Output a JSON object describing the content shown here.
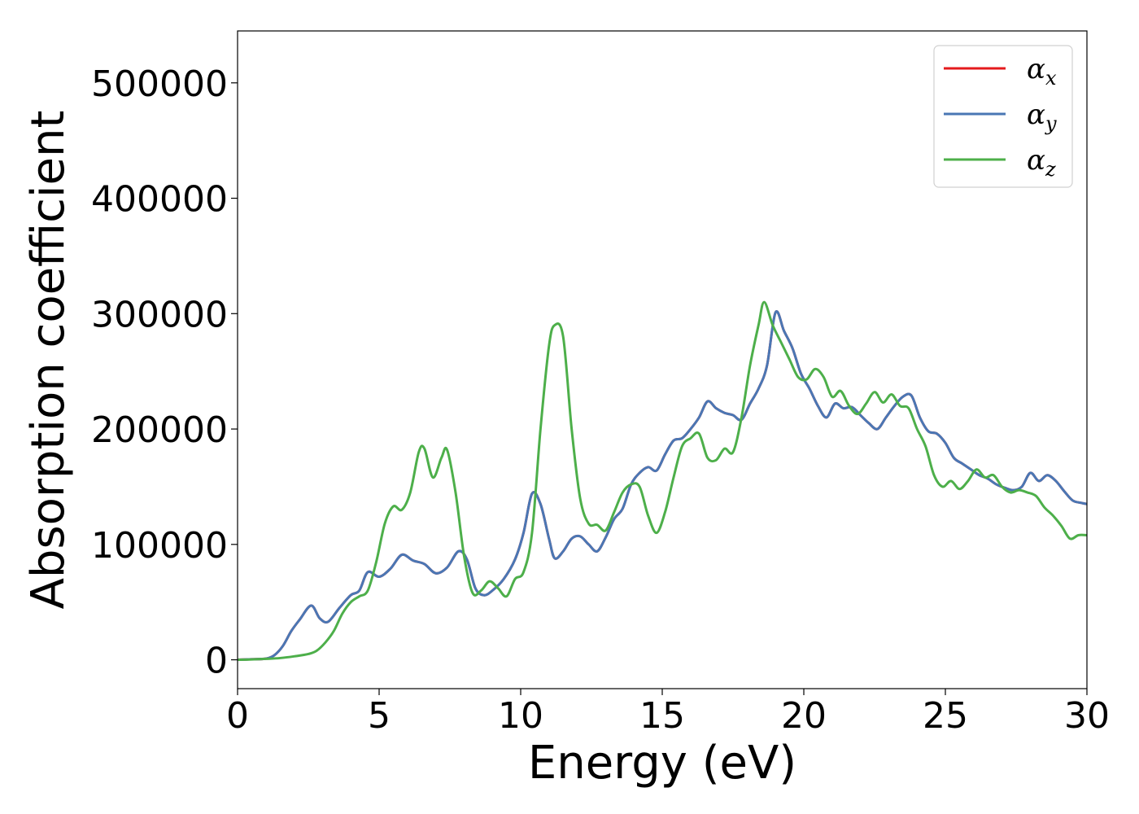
{
  "chart_data": {
    "type": "line",
    "title": "",
    "xlabel": "Energy (eV)",
    "ylabel": "Absorption coefficient",
    "xlim": [
      0,
      30
    ],
    "ylim": [
      -25000,
      545000
    ],
    "xticks": [
      "0",
      "5",
      "10",
      "15",
      "20",
      "25",
      "30"
    ],
    "yticks": [
      "0",
      "100000",
      "200000",
      "300000",
      "400000",
      "500000"
    ],
    "grid": false,
    "legend_placement": "top-right",
    "series": [
      {
        "name": "αx",
        "symbol": "α",
        "sub": "x",
        "color": "#e41a1c",
        "x": [
          0,
          0.5,
          1,
          1.3,
          1.6,
          1.9,
          2.2,
          2.6,
          2.9,
          3.2,
          3.6,
          4,
          4.3,
          4.6,
          5,
          5.4,
          5.8,
          6.2,
          6.6,
          7,
          7.4,
          7.8,
          8.1,
          8.4,
          8.7,
          9,
          9.4,
          9.8,
          10.1,
          10.4,
          10.7,
          11,
          11.2,
          11.5,
          11.8,
          12.1,
          12.4,
          12.7,
          13,
          13.3,
          13.6,
          13.9,
          14.2,
          14.5,
          14.8,
          15.1,
          15.4,
          15.7,
          16,
          16.3,
          16.6,
          16.9,
          17.2,
          17.5,
          17.8,
          18.1,
          18.4,
          18.7,
          19,
          19.3,
          19.6,
          19.9,
          20.2,
          20.5,
          20.8,
          21.1,
          21.4,
          21.7,
          22,
          22.3,
          22.6,
          22.9,
          23.2,
          23.5,
          23.8,
          24.1,
          24.4,
          24.7,
          25,
          25.3,
          25.6,
          25.9,
          26.2,
          26.5,
          26.8,
          27.1,
          27.4,
          27.7,
          28,
          28.3,
          28.6,
          28.9,
          29.2,
          29.5,
          29.8,
          30
        ],
        "y": [
          0,
          500,
          1000,
          4000,
          12000,
          25000,
          35000,
          47000,
          36000,
          33000,
          45000,
          56000,
          60000,
          76000,
          72000,
          79000,
          91000,
          86000,
          83000,
          75000,
          80000,
          94000,
          87000,
          62000,
          56000,
          60000,
          70000,
          87000,
          110000,
          144000,
          135000,
          105000,
          88000,
          94000,
          105000,
          107000,
          100000,
          94000,
          106000,
          122000,
          131000,
          152000,
          162000,
          167000,
          164000,
          178000,
          190000,
          192000,
          200000,
          210000,
          224000,
          218000,
          214000,
          212000,
          208000,
          222000,
          235000,
          255000,
          301000,
          285000,
          270000,
          248000,
          235000,
          220000,
          210000,
          222000,
          218000,
          219000,
          212000,
          205000,
          200000,
          210000,
          220000,
          228000,
          229000,
          210000,
          198000,
          196000,
          188000,
          175000,
          170000,
          165000,
          160000,
          157000,
          152000,
          149000,
          147000,
          150000,
          162000,
          155000,
          160000,
          155000,
          146000,
          138000,
          136000,
          135000
        ]
      },
      {
        "name": "αy",
        "symbol": "α",
        "sub": "y",
        "color": "#4a77b4",
        "x": [
          0,
          0.5,
          1,
          1.3,
          1.6,
          1.9,
          2.2,
          2.6,
          2.9,
          3.2,
          3.6,
          4,
          4.3,
          4.6,
          5,
          5.4,
          5.8,
          6.2,
          6.6,
          7,
          7.4,
          7.8,
          8.1,
          8.4,
          8.7,
          9,
          9.4,
          9.8,
          10.1,
          10.4,
          10.7,
          11,
          11.2,
          11.5,
          11.8,
          12.1,
          12.4,
          12.7,
          13,
          13.3,
          13.6,
          13.9,
          14.2,
          14.5,
          14.8,
          15.1,
          15.4,
          15.7,
          16,
          16.3,
          16.6,
          16.9,
          17.2,
          17.5,
          17.8,
          18.1,
          18.4,
          18.7,
          19,
          19.3,
          19.6,
          19.9,
          20.2,
          20.5,
          20.8,
          21.1,
          21.4,
          21.7,
          22,
          22.3,
          22.6,
          22.9,
          23.2,
          23.5,
          23.8,
          24.1,
          24.4,
          24.7,
          25,
          25.3,
          25.6,
          25.9,
          26.2,
          26.5,
          26.8,
          27.1,
          27.4,
          27.7,
          28,
          28.3,
          28.6,
          28.9,
          29.2,
          29.5,
          29.8,
          30
        ],
        "y": [
          0,
          500,
          1000,
          4000,
          12000,
          25000,
          35000,
          47000,
          36000,
          33000,
          45000,
          56000,
          60000,
          76000,
          72000,
          79000,
          91000,
          86000,
          83000,
          75000,
          80000,
          94000,
          87000,
          62000,
          56000,
          60000,
          70000,
          87000,
          110000,
          144000,
          135000,
          105000,
          88000,
          94000,
          105000,
          107000,
          100000,
          94000,
          106000,
          122000,
          131000,
          152000,
          162000,
          167000,
          164000,
          178000,
          190000,
          192000,
          200000,
          210000,
          224000,
          218000,
          214000,
          212000,
          208000,
          222000,
          235000,
          255000,
          301000,
          285000,
          270000,
          248000,
          235000,
          220000,
          210000,
          222000,
          218000,
          219000,
          212000,
          205000,
          200000,
          210000,
          220000,
          228000,
          229000,
          210000,
          198000,
          196000,
          188000,
          175000,
          170000,
          165000,
          160000,
          157000,
          152000,
          149000,
          147000,
          150000,
          162000,
          155000,
          160000,
          155000,
          146000,
          138000,
          136000,
          135000
        ]
      },
      {
        "name": "αz",
        "symbol": "α",
        "sub": "z",
        "color": "#4daf4a",
        "x": [
          0,
          0.5,
          1,
          1.5,
          2,
          2.5,
          2.8,
          3.1,
          3.4,
          3.7,
          4,
          4.3,
          4.6,
          4.9,
          5.2,
          5.5,
          5.8,
          6.1,
          6.4,
          6.6,
          6.9,
          7.2,
          7.4,
          7.7,
          8,
          8.3,
          8.6,
          8.9,
          9.2,
          9.5,
          9.8,
          10.1,
          10.4,
          10.7,
          11,
          11.2,
          11.5,
          11.8,
          12.1,
          12.4,
          12.7,
          13,
          13.3,
          13.6,
          13.9,
          14.2,
          14.5,
          14.8,
          15.1,
          15.4,
          15.7,
          16,
          16.3,
          16.6,
          16.9,
          17.2,
          17.5,
          17.8,
          18.1,
          18.4,
          18.6,
          18.9,
          19.2,
          19.5,
          19.8,
          20.1,
          20.4,
          20.7,
          21,
          21.3,
          21.6,
          21.9,
          22.2,
          22.5,
          22.8,
          23.1,
          23.4,
          23.7,
          24,
          24.3,
          24.6,
          24.9,
          25.2,
          25.5,
          25.8,
          26.1,
          26.4,
          26.7,
          27,
          27.3,
          27.6,
          27.9,
          28.2,
          28.5,
          28.8,
          29.1,
          29.4,
          29.7,
          30
        ],
        "y": [
          0,
          300,
          800,
          1500,
          3000,
          5000,
          8000,
          15000,
          25000,
          40000,
          50000,
          55000,
          60000,
          85000,
          118000,
          133000,
          130000,
          145000,
          180000,
          183000,
          158000,
          175000,
          182000,
          145000,
          90000,
          58000,
          60000,
          68000,
          62000,
          55000,
          70000,
          76000,
          110000,
          200000,
          272000,
          290000,
          280000,
          200000,
          140000,
          118000,
          117000,
          112000,
          128000,
          145000,
          152000,
          150000,
          125000,
          110000,
          128000,
          158000,
          185000,
          192000,
          196000,
          175000,
          173000,
          183000,
          180000,
          210000,
          255000,
          290000,
          310000,
          290000,
          275000,
          260000,
          245000,
          243000,
          252000,
          245000,
          228000,
          233000,
          220000,
          213000,
          222000,
          232000,
          223000,
          230000,
          220000,
          218000,
          200000,
          185000,
          160000,
          150000,
          155000,
          148000,
          155000,
          165000,
          158000,
          160000,
          150000,
          145000,
          147000,
          145000,
          142000,
          132000,
          125000,
          116000,
          105000,
          108000,
          108000
        ]
      }
    ]
  }
}
